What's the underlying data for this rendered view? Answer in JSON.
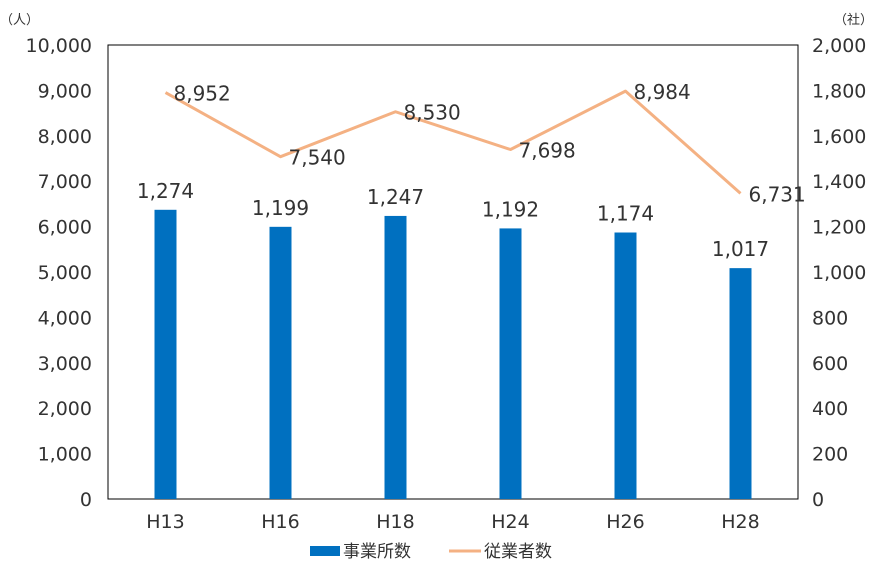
{
  "chart_data": {
    "type": "bar",
    "categories": [
      "H13",
      "H16",
      "H18",
      "H24",
      "H26",
      "H28"
    ],
    "series": [
      {
        "name": "事業所数",
        "type": "bar",
        "axis": "right",
        "values": [
          1274,
          1199,
          1247,
          1192,
          1174,
          1017
        ],
        "labels": [
          "1,274",
          "1,199",
          "1,247",
          "1,192",
          "1,174",
          "1,017"
        ],
        "color": "#0070C0"
      },
      {
        "name": "従業者数",
        "type": "line",
        "axis": "left",
        "values": [
          8952,
          7540,
          8530,
          7698,
          8984,
          6731
        ],
        "labels": [
          "8,952",
          "7,540",
          "8,530",
          "7,698",
          "8,984",
          "6,731"
        ],
        "color": "#F4B183"
      }
    ],
    "left_axis": {
      "unit": "（人）",
      "ylim": [
        0,
        10000
      ],
      "ticks": [
        "0",
        "1,000",
        "2,000",
        "3,000",
        "4,000",
        "5,000",
        "6,000",
        "7,000",
        "8,000",
        "9,000",
        "10,000"
      ]
    },
    "right_axis": {
      "unit": "（社）",
      "ylim": [
        0,
        2000
      ],
      "ticks": [
        "0",
        "200",
        "400",
        "600",
        "800",
        "1,000",
        "1,200",
        "1,400",
        "1,600",
        "1,800",
        "2,000"
      ]
    },
    "grid": false,
    "legend": "bottom"
  }
}
